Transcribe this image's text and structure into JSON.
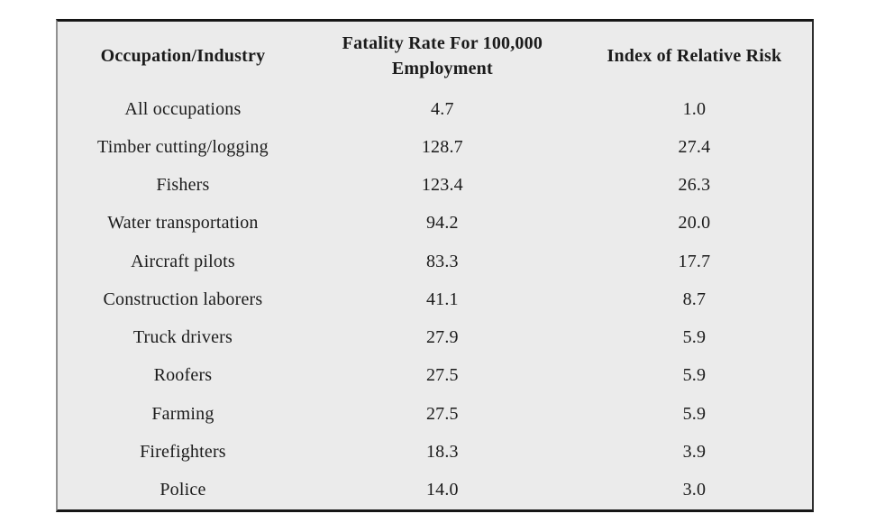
{
  "colors": {
    "page_background": "#ffffff",
    "table_background": "#ebebeb",
    "border_dark": "#161616",
    "border_left": "#919191",
    "text": "#1b1b1b"
  },
  "chart_data": {
    "type": "table",
    "columns": [
      "Occupation/Industry",
      "Fatality Rate For 100,000 Employment",
      "Index of Relative Risk"
    ],
    "rows": [
      [
        "All occupations",
        "4.7",
        "1.0"
      ],
      [
        "Timber cutting/logging",
        "128.7",
        "27.4"
      ],
      [
        "Fishers",
        "123.4",
        "26.3"
      ],
      [
        "Water transportation",
        "94.2",
        "20.0"
      ],
      [
        "Aircraft pilots",
        "83.3",
        "17.7"
      ],
      [
        "Construction laborers",
        "41.1",
        "8.7"
      ],
      [
        "Truck drivers",
        "27.9",
        "5.9"
      ],
      [
        "Roofers",
        "27.5",
        "5.9"
      ],
      [
        "Farming",
        "27.5",
        "5.9"
      ],
      [
        "Firefighters",
        "18.3",
        "3.9"
      ],
      [
        "Police",
        "14.0",
        "3.0"
      ]
    ]
  }
}
